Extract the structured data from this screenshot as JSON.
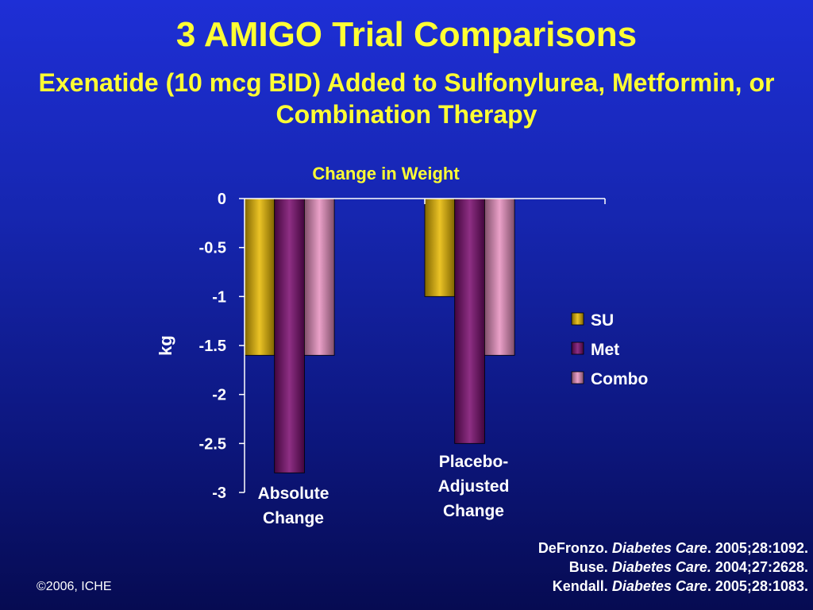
{
  "slide": {
    "title": "3 AMIGO Trial Comparisons",
    "subtitle": "Exenatide (10 mcg BID) Added to Sulfonylurea, Metformin, or Combination Therapy",
    "copyright": "©2006, ICHE"
  },
  "references": [
    {
      "author": "DeFronzo.",
      "journal": "Diabetes Care",
      "citation": ". 2005;28:1092."
    },
    {
      "author": "Buse.",
      "journal": "Diabetes Care.",
      "citation": " 2004;27:2628."
    },
    {
      "author": "Kendall.",
      "journal": "Diabetes Care",
      "citation": ". 2005;28:1083."
    }
  ],
  "chart_data": {
    "type": "bar",
    "title": "Change in Weight",
    "ylabel": "kg",
    "xlabel": "",
    "ylim": [
      -3,
      0
    ],
    "yticks": [
      0,
      -0.5,
      -1,
      -1.5,
      -2,
      -2.5,
      -3
    ],
    "ytick_labels": [
      "0",
      "-0.5",
      "-1",
      "-1.5",
      "-2",
      "-2.5",
      "-3"
    ],
    "categories": [
      {
        "lines": [
          "Absolute",
          "Change"
        ]
      },
      {
        "lines": [
          "Placebo-",
          "Adjusted",
          "Change"
        ]
      }
    ],
    "series": [
      {
        "name": "SU",
        "values": [
          -1.6,
          -1.0
        ],
        "color": "#e8b800"
      },
      {
        "name": "Met",
        "values": [
          -2.8,
          -2.5
        ],
        "color": "#7a0a6e"
      },
      {
        "name": "Combo",
        "values": [
          -1.6,
          -1.6
        ],
        "color": "#e890c0"
      }
    ],
    "legend": {
      "position": "right"
    },
    "colors": {
      "title": "#ffff33",
      "text": "#ffffff",
      "axis": "#ffffff",
      "background": "#1626b0"
    }
  }
}
